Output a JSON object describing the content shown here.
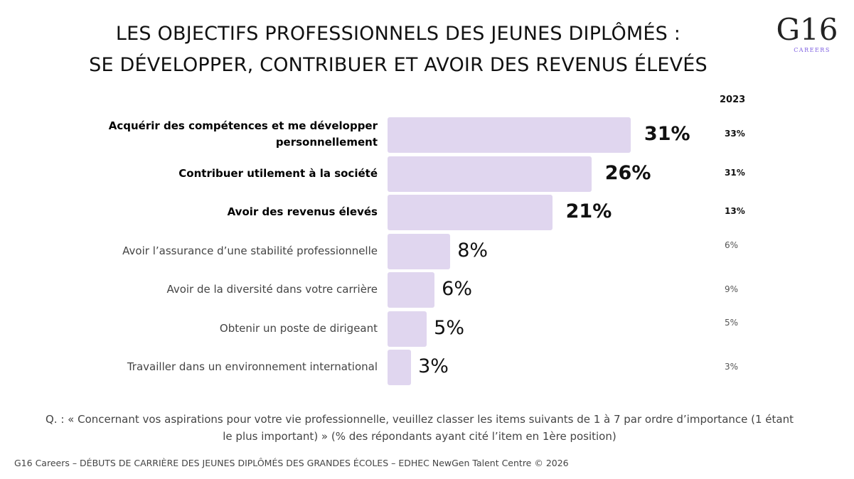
{
  "title_line1": "LES OBJECTIFS PROFESSIONNELS DES JEUNES DIPLÔMÉS :",
  "title_line2": "SE DÉVELOPPER, CONTRIBUER ET AVOIR DES REVENUS ÉLEVÉS",
  "logo": {
    "main": "G16",
    "sub": "CAREERS"
  },
  "colors": {
    "bar": "#e0d6ef",
    "logo_accent": "#7b5ce0"
  },
  "chart_data": {
    "type": "bar",
    "orientation": "horizontal",
    "categories": [
      "Acquérir des compétences et me développer personnellement",
      "Contribuer utilement à la société",
      "Avoir des revenus élevés",
      "Avoir l’assurance d’une stabilité professionnelle",
      "Avoir de la diversité dans votre carrière",
      "Obtenir un poste de dirigeant",
      "Travailler dans un environnement international"
    ],
    "values": [
      31,
      26,
      21,
      8,
      6,
      5,
      3
    ],
    "value_labels": [
      "31%",
      "26%",
      "21%",
      "8%",
      "6%",
      "5%",
      "3%"
    ],
    "comparison_header": "2023",
    "comparison_labels": [
      "33%",
      "31%",
      "13%",
      "6%",
      "9%",
      "5%",
      "3%"
    ],
    "comparison_values": [
      33,
      31,
      13,
      6,
      9,
      5,
      3
    ],
    "highlighted_count": 3
  },
  "question": "Q. : « Concernant vos aspirations pour votre vie professionnelle, veuillez classer les items suivants de 1 à 7 par ordre d’importance (1 étant le plus important) » (% des répondants ayant cité l’item en 1ère position)",
  "footer": "G16 Careers – DÉBUTS DE CARRIÈRE DES JEUNES DIPLÔMÉS DES GRANDES ÉCOLES – EDHEC NewGen Talent Centre © 2026"
}
